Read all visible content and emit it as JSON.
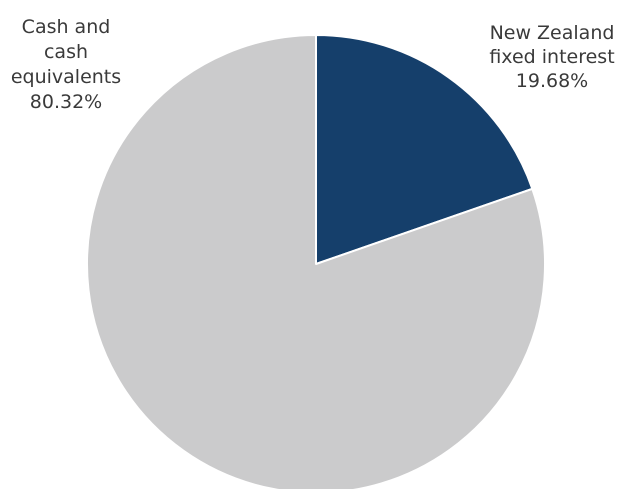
{
  "chart_data": {
    "type": "pie",
    "title": "",
    "start_angle_deg": 0,
    "direction": "clockwise",
    "slices": [
      {
        "name": "New Zealand fixed interest",
        "value": 19.68,
        "value_label": "19.68%",
        "label_lines": [
          "New Zealand",
          "fixed interest",
          "19.68%"
        ],
        "color": "#153f6b"
      },
      {
        "name": "Cash and cash equivalents",
        "value": 80.32,
        "value_label": "80.32%",
        "label_lines": [
          "Cash and",
          "cash",
          "equivalents",
          "80.32%"
        ],
        "color": "#cbcbcc"
      }
    ],
    "legend": "none",
    "grid": false
  }
}
